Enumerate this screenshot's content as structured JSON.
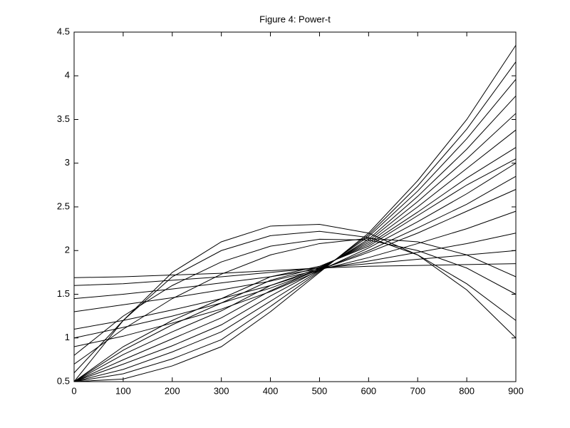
{
  "chart_data": {
    "type": "line",
    "title": "Figure 4: Power-t",
    "color": "#000000",
    "x": [
      0,
      100,
      200,
      300,
      400,
      500,
      600,
      700,
      800,
      900
    ],
    "xlim": [
      0,
      900
    ],
    "xticks": [
      0,
      100,
      200,
      300,
      400,
      500,
      600,
      700,
      800,
      900
    ],
    "ylim": [
      0.5,
      4.5
    ],
    "yticks": [
      0.5,
      1,
      1.5,
      2,
      2.5,
      3,
      3.5,
      4,
      4.5
    ],
    "series": [
      {
        "values": [
          0.5,
          0.53,
          0.68,
          0.9,
          1.3,
          1.75,
          2.2,
          2.8,
          3.5,
          4.35
        ]
      },
      {
        "values": [
          0.5,
          0.59,
          0.76,
          0.98,
          1.36,
          1.76,
          2.18,
          2.74,
          3.39,
          4.16
        ]
      },
      {
        "values": [
          0.5,
          0.64,
          0.84,
          1.07,
          1.42,
          1.77,
          2.16,
          2.68,
          3.28,
          3.96
        ]
      },
      {
        "values": [
          0.5,
          0.7,
          0.91,
          1.15,
          1.48,
          1.78,
          2.13,
          2.62,
          3.16,
          3.77
        ]
      },
      {
        "values": [
          0.5,
          0.75,
          0.99,
          1.23,
          1.54,
          1.79,
          2.11,
          2.56,
          3.05,
          3.57
        ]
      },
      {
        "values": [
          0.5,
          0.81,
          1.07,
          1.31,
          1.6,
          1.8,
          2.09,
          2.5,
          2.94,
          3.38
        ]
      },
      {
        "values": [
          0.5,
          0.86,
          1.15,
          1.4,
          1.66,
          1.81,
          2.07,
          2.44,
          2.83,
          3.18
        ]
      },
      {
        "values": [
          0.5,
          0.9,
          1.2,
          1.45,
          1.7,
          1.82,
          2.05,
          2.4,
          2.75,
          3.05
        ]
      },
      {
        "values": [
          1.69,
          1.7,
          1.72,
          1.74,
          1.77,
          1.8,
          1.82,
          1.83,
          1.84,
          1.85
        ]
      },
      {
        "values": [
          1.6,
          1.62,
          1.66,
          1.7,
          1.75,
          1.8,
          1.85,
          1.9,
          1.95,
          2.0
        ]
      },
      {
        "values": [
          1.45,
          1.5,
          1.56,
          1.63,
          1.7,
          1.79,
          1.88,
          1.98,
          2.08,
          2.2
        ]
      },
      {
        "values": [
          1.3,
          1.38,
          1.46,
          1.55,
          1.65,
          1.78,
          1.92,
          2.08,
          2.25,
          2.45
        ]
      },
      {
        "values": [
          1.1,
          1.2,
          1.32,
          1.45,
          1.6,
          1.78,
          1.98,
          2.2,
          2.45,
          2.7
        ]
      },
      {
        "values": [
          0.9,
          1.02,
          1.17,
          1.33,
          1.53,
          1.77,
          2.03,
          2.33,
          2.65,
          3.0
        ]
      },
      {
        "values": [
          1.0,
          1.12,
          1.25,
          1.4,
          1.57,
          1.78,
          2.0,
          2.26,
          2.53,
          2.85
        ]
      },
      {
        "values": [
          0.5,
          1.2,
          1.75,
          2.1,
          2.28,
          2.3,
          2.2,
          1.95,
          1.55,
          1.0
        ]
      },
      {
        "values": [
          0.6,
          1.2,
          1.7,
          2.0,
          2.17,
          2.22,
          2.15,
          1.95,
          1.62,
          1.2
        ]
      },
      {
        "values": [
          0.8,
          1.25,
          1.6,
          1.87,
          2.05,
          2.13,
          2.12,
          2.0,
          1.8,
          1.5
        ]
      },
      {
        "values": [
          0.7,
          1.1,
          1.45,
          1.73,
          1.95,
          2.08,
          2.14,
          2.1,
          1.95,
          1.7
        ]
      }
    ]
  }
}
